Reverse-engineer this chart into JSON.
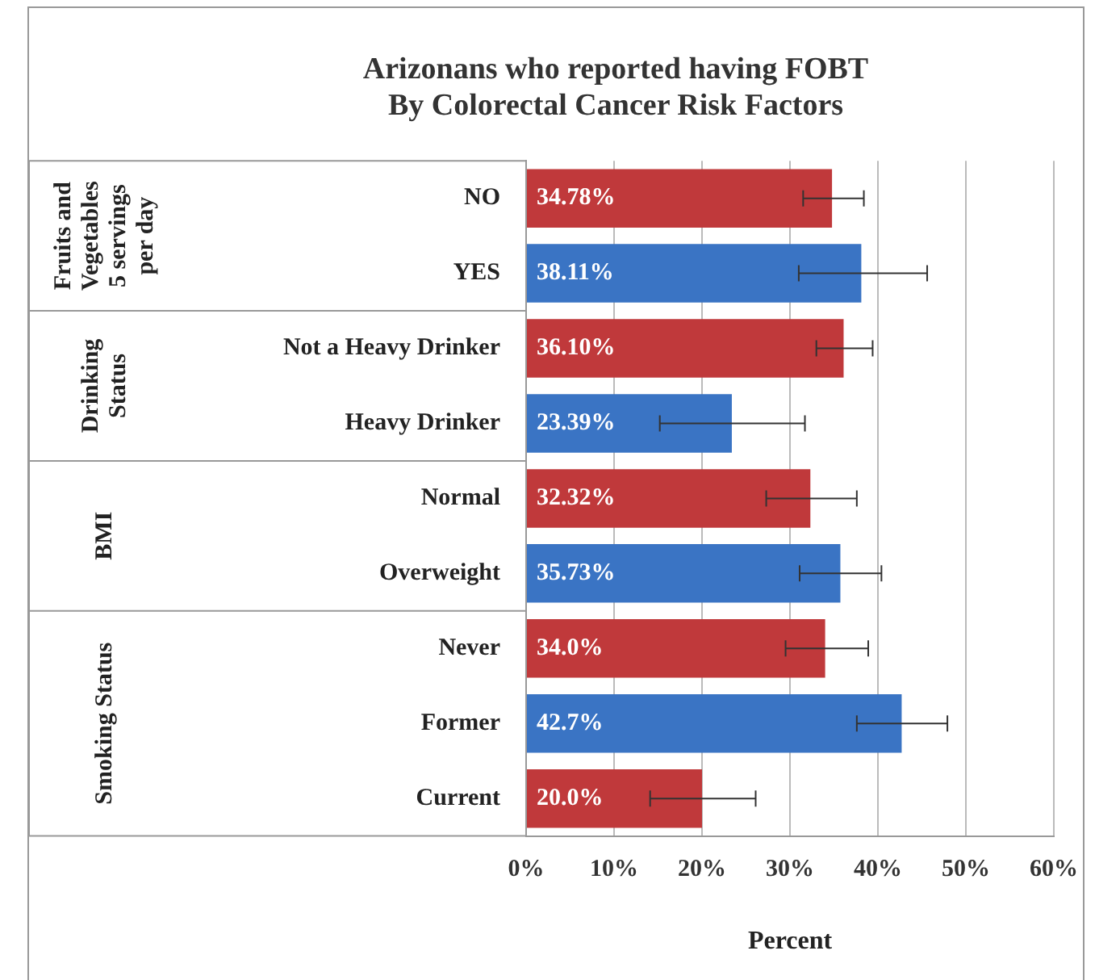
{
  "chart_data": {
    "type": "bar",
    "orientation": "horizontal",
    "title": "Arizonans who reported having FOBT\nBy Colorectal Cancer Risk Factors",
    "xlabel": "Percent",
    "categories": [
      "NO",
      "YES",
      "Not a Heavy Drinker",
      "Heavy Drinker",
      "Normal",
      "Overweight",
      "Never",
      "Former",
      "Current"
    ],
    "values": [
      34.78,
      38.11,
      36.1,
      23.39,
      32.32,
      35.73,
      34.0,
      42.7,
      20.0
    ],
    "value_labels": [
      "34.78%",
      "38.11%",
      "36.10%",
      "23.39%",
      "32.32%",
      "35.73%",
      "34.0%",
      "42.7%",
      "20.0%"
    ],
    "colors": [
      "#c0393b",
      "#3a74c4",
      "#c0393b",
      "#3a74c4",
      "#c0393b",
      "#3a74c4",
      "#c0393b",
      "#3a74c4",
      "#c0393b"
    ],
    "errors": [
      [
        31.5,
        38.4
      ],
      [
        31.0,
        45.6
      ],
      [
        33.0,
        39.4
      ],
      [
        15.2,
        31.7
      ],
      [
        27.3,
        37.6
      ],
      [
        31.1,
        40.4
      ],
      [
        29.5,
        38.9
      ],
      [
        37.6,
        47.9
      ],
      [
        14.1,
        26.1
      ]
    ],
    "xlim": [
      0,
      60
    ],
    "xticks": [
      {
        "value": 0,
        "label": "0%"
      },
      {
        "value": 10,
        "label": "10%"
      },
      {
        "value": 20,
        "label": "20%"
      },
      {
        "value": 30,
        "label": "30%"
      },
      {
        "value": 40,
        "label": "40%"
      },
      {
        "value": 50,
        "label": "50%"
      },
      {
        "value": 60,
        "label": "60%"
      }
    ],
    "grid": "x",
    "legend": false,
    "annotations": [
      "Fruits and Vegetables 5 servings per day",
      "Drinking Status",
      "BMI",
      "Smoking Status"
    ]
  }
}
